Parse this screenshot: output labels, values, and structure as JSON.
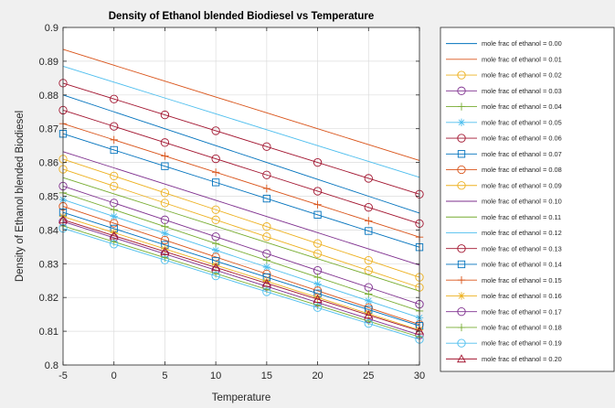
{
  "chart_data": {
    "type": "line",
    "title": "Density of Ethanol blended Biodiesel vs Temperature",
    "xlabel": "Temperature",
    "ylabel": "Density of Ethanol blended Biodiesel",
    "xlim": [
      -5,
      30
    ],
    "ylim": [
      0.8,
      0.9
    ],
    "x_ticks": [
      "-5",
      "0",
      "5",
      "10",
      "15",
      "20",
      "25",
      "30"
    ],
    "y_ticks": [
      "0.8",
      "0.81",
      "0.82",
      "0.83",
      "0.84",
      "0.85",
      "0.86",
      "0.87",
      "0.88",
      "0.89",
      "0.9"
    ],
    "grid": true,
    "legend_position": "outside-right",
    "x": [
      -5,
      0,
      5,
      10,
      15,
      20,
      25,
      30
    ],
    "series": [
      {
        "name": "mole frac of ethanol = 0.00",
        "color": "#0072BD",
        "marker": "none",
        "values": [
          0.88,
          0.875,
          0.87,
          0.865,
          0.86,
          0.855,
          0.85,
          0.845
        ]
      },
      {
        "name": "mole frac of ethanol = 0.01",
        "color": "#D95319",
        "marker": "none",
        "values": [
          0.8935,
          0.8888,
          0.8841,
          0.8794,
          0.8747,
          0.87,
          0.8653,
          0.8606
        ]
      },
      {
        "name": "mole frac of ethanol = 0.02",
        "color": "#EDB120",
        "marker": "circle",
        "values": [
          0.858,
          0.853,
          0.848,
          0.843,
          0.838,
          0.833,
          0.828,
          0.823
        ]
      },
      {
        "name": "mole frac of ethanol = 0.03",
        "color": "#7E2F8E",
        "marker": "circle",
        "values": [
          0.853,
          0.848,
          0.843,
          0.838,
          0.833,
          0.828,
          0.823,
          0.818
        ]
      },
      {
        "name": "mole frac of ethanol = 0.04",
        "color": "#77AC30",
        "marker": "plus",
        "values": [
          0.851,
          0.846,
          0.841,
          0.836,
          0.831,
          0.826,
          0.821,
          0.816
        ]
      },
      {
        "name": "mole frac of ethanol = 0.05",
        "color": "#4DBEEE",
        "marker": "asterisk",
        "values": [
          0.849,
          0.844,
          0.839,
          0.834,
          0.829,
          0.824,
          0.819,
          0.814
        ]
      },
      {
        "name": "mole frac of ethanol = 0.06",
        "color": "#A2142F",
        "marker": "circle",
        "values": [
          0.8755,
          0.8707,
          0.8659,
          0.8611,
          0.8563,
          0.8515,
          0.8467,
          0.8419
        ]
      },
      {
        "name": "mole frac of ethanol = 0.07",
        "color": "#0072BD",
        "marker": "square",
        "values": [
          0.8685,
          0.8637,
          0.8589,
          0.8541,
          0.8493,
          0.8445,
          0.8397,
          0.8349
        ]
      },
      {
        "name": "mole frac of ethanol = 0.08",
        "color": "#D95319",
        "marker": "circle",
        "values": [
          0.847,
          0.842,
          0.837,
          0.832,
          0.827,
          0.822,
          0.817,
          0.812
        ]
      },
      {
        "name": "mole frac of ethanol = 0.09",
        "color": "#EDB120",
        "marker": "circle",
        "values": [
          0.861,
          0.856,
          0.851,
          0.846,
          0.841,
          0.836,
          0.831,
          0.826
        ]
      },
      {
        "name": "mole frac of ethanol = 0.10",
        "color": "#7E2F8E",
        "marker": "none",
        "values": [
          0.8632,
          0.8584,
          0.8536,
          0.8488,
          0.844,
          0.8392,
          0.8344,
          0.8296
        ]
      },
      {
        "name": "mole frac of ethanol = 0.11",
        "color": "#77AC30",
        "marker": "none",
        "values": [
          0.8555,
          0.8507,
          0.8459,
          0.8411,
          0.8363,
          0.8315,
          0.8267,
          0.8219
        ]
      },
      {
        "name": "mole frac of ethanol = 0.12",
        "color": "#4DBEEE",
        "marker": "none",
        "values": [
          0.8885,
          0.8838,
          0.8791,
          0.8744,
          0.8697,
          0.865,
          0.8603,
          0.8556
        ]
      },
      {
        "name": "mole frac of ethanol = 0.13",
        "color": "#A2142F",
        "marker": "circle",
        "values": [
          0.8835,
          0.8788,
          0.8741,
          0.8694,
          0.8647,
          0.86,
          0.8553,
          0.8506
        ]
      },
      {
        "name": "mole frac of ethanol = 0.14",
        "color": "#0072BD",
        "marker": "square",
        "values": [
          0.8452,
          0.8404,
          0.8356,
          0.8308,
          0.826,
          0.8212,
          0.8164,
          0.8116
        ]
      },
      {
        "name": "mole frac of ethanol = 0.15",
        "color": "#D95319",
        "marker": "plus",
        "values": [
          0.8715,
          0.8667,
          0.8619,
          0.8571,
          0.8523,
          0.8475,
          0.8427,
          0.8379
        ]
      },
      {
        "name": "mole frac of ethanol = 0.16",
        "color": "#EDB120",
        "marker": "asterisk",
        "values": [
          0.844,
          0.8392,
          0.8344,
          0.8296,
          0.8248,
          0.82,
          0.8152,
          0.8104
        ]
      },
      {
        "name": "mole frac of ethanol = 0.17",
        "color": "#7E2F8E",
        "marker": "circle",
        "values": [
          0.8425,
          0.8377,
          0.8329,
          0.8281,
          0.8233,
          0.8185,
          0.8137,
          0.8089
        ]
      },
      {
        "name": "mole frac of ethanol = 0.18",
        "color": "#77AC30",
        "marker": "plus",
        "values": [
          0.8412,
          0.8365,
          0.8318,
          0.8271,
          0.8224,
          0.8177,
          0.813,
          0.8083
        ]
      },
      {
        "name": "mole frac of ethanol = 0.19",
        "color": "#4DBEEE",
        "marker": "circle",
        "values": [
          0.8405,
          0.8358,
          0.8311,
          0.8264,
          0.8217,
          0.817,
          0.8123,
          0.8076
        ]
      },
      {
        "name": "mole frac of ethanol = 0.20",
        "color": "#A2142F",
        "marker": "triangle",
        "values": [
          0.843,
          0.8383,
          0.8336,
          0.8289,
          0.8242,
          0.8195,
          0.8148,
          0.8101
        ]
      }
    ]
  }
}
